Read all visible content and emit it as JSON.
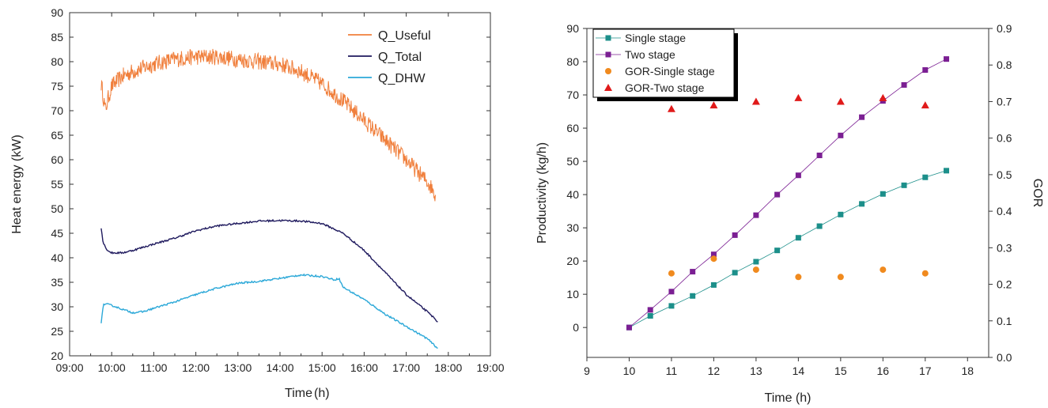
{
  "chart_data": [
    {
      "type": "line",
      "xlabel": "Time",
      "xlabel_unit": "(h)",
      "ylabel": "Heat energy (kW)",
      "x_ticks": [
        "09:00",
        "10:00",
        "11:00",
        "12:00",
        "13:00",
        "14:00",
        "15:00",
        "16:00",
        "17:00",
        "18:00",
        "19:00"
      ],
      "xlim": [
        9,
        19
      ],
      "ylim": [
        20,
        90
      ],
      "y_ticks": [
        20,
        25,
        30,
        35,
        40,
        45,
        50,
        55,
        60,
        65,
        70,
        75,
        80,
        85,
        90
      ],
      "grid": false,
      "legend_position": "top-right",
      "series": [
        {
          "name": "Q_Useful",
          "color": "#f07f3c",
          "noisy": true,
          "x": [
            9.75,
            9.8,
            9.85,
            9.9,
            10.0,
            10.25,
            10.5,
            11.0,
            11.5,
            12.0,
            12.5,
            13.0,
            13.5,
            14.0,
            14.5,
            15.0,
            15.5,
            16.0,
            16.5,
            17.0,
            17.5,
            17.7
          ],
          "values": [
            75.5,
            73.0,
            70.0,
            72.0,
            75.0,
            77.0,
            78.0,
            79.5,
            80.5,
            81.0,
            81.0,
            80.5,
            80.0,
            79.5,
            78.0,
            75.5,
            72.0,
            68.0,
            64.0,
            60.0,
            55.5,
            53.0
          ]
        },
        {
          "name": "Q_Total",
          "color": "#1f1a5e",
          "noisy": false,
          "x": [
            9.75,
            9.8,
            9.9,
            10.0,
            10.25,
            10.5,
            11.0,
            11.5,
            12.0,
            12.5,
            13.0,
            13.5,
            14.0,
            14.5,
            15.0,
            15.5,
            16.0,
            16.5,
            17.0,
            17.5,
            17.75
          ],
          "values": [
            46.0,
            43.0,
            41.5,
            41.0,
            41.0,
            41.5,
            42.8,
            44.0,
            45.5,
            46.5,
            47.0,
            47.5,
            47.6,
            47.5,
            47.0,
            45.0,
            41.5,
            37.0,
            32.5,
            29.0,
            27.0
          ]
        },
        {
          "name": "Q_DHW",
          "color": "#2ba8d8",
          "noisy": false,
          "x": [
            9.75,
            9.8,
            9.9,
            10.0,
            10.25,
            10.5,
            10.75,
            11.0,
            11.5,
            12.0,
            12.5,
            13.0,
            13.5,
            14.0,
            14.5,
            15.0,
            15.3,
            15.4,
            15.5,
            16.0,
            16.5,
            17.0,
            17.5,
            17.75
          ],
          "values": [
            26.5,
            30.5,
            30.5,
            30.3,
            29.5,
            28.8,
            29.0,
            29.7,
            31.0,
            32.5,
            33.8,
            34.8,
            35.2,
            35.8,
            36.5,
            36.2,
            35.5,
            35.8,
            34.0,
            31.5,
            28.5,
            26.0,
            23.5,
            21.5
          ]
        }
      ]
    },
    {
      "type": "scatter",
      "xlabel": "Time (h)",
      "ylabel": "Productivity (kg/h)",
      "y2label": "GOR",
      "xlim": [
        9,
        18.5
      ],
      "x_ticks": [
        9,
        10,
        11,
        12,
        13,
        14,
        15,
        16,
        17,
        18
      ],
      "ylim": [
        -9,
        90
      ],
      "y_ticks": [
        0,
        10,
        20,
        30,
        40,
        50,
        60,
        70,
        80,
        90
      ],
      "y2lim": [
        0,
        0.9
      ],
      "y2_ticks": [
        "0.0",
        "0.1",
        "0.2",
        "0.3",
        "0.4",
        "0.5",
        "0.6",
        "0.7",
        "0.8",
        "0.9"
      ],
      "grid": false,
      "legend_position": "top-left",
      "series": [
        {
          "name": "Single stage",
          "axis": "left",
          "marker": "square",
          "color": "#1c8f8a",
          "connected": true,
          "x": [
            10,
            10.5,
            11,
            11.5,
            12,
            12.5,
            13,
            13.5,
            14,
            14.5,
            15,
            15.5,
            16,
            16.5,
            17,
            17.5
          ],
          "values": [
            0,
            3.5,
            6.5,
            9.5,
            12.8,
            16.5,
            19.8,
            23.2,
            27.0,
            30.5,
            34.0,
            37.2,
            40.2,
            42.8,
            45.2,
            47.2
          ]
        },
        {
          "name": "Two stage",
          "axis": "left",
          "marker": "square",
          "color": "#7b1f93",
          "connected": true,
          "x": [
            10,
            10.5,
            11,
            11.5,
            12,
            12.5,
            13,
            13.5,
            14,
            14.5,
            15,
            15.5,
            16,
            16.5,
            17,
            17.5
          ],
          "values": [
            0,
            5.3,
            10.8,
            16.8,
            22.0,
            27.8,
            33.8,
            40.0,
            45.8,
            51.8,
            57.8,
            63.3,
            68.2,
            73.0,
            77.5,
            80.8
          ]
        },
        {
          "name": "GOR-Single stage",
          "axis": "right",
          "marker": "circle",
          "color": "#f08a1e",
          "connected": false,
          "x": [
            11,
            12,
            13,
            14,
            15,
            16,
            17
          ],
          "values": [
            0.23,
            0.27,
            0.24,
            0.22,
            0.22,
            0.24,
            0.23
          ]
        },
        {
          "name": "GOR-Two stage",
          "axis": "right",
          "marker": "triangle",
          "color": "#e01a1a",
          "connected": false,
          "x": [
            11,
            12,
            13,
            14,
            15,
            16,
            17
          ],
          "values": [
            0.68,
            0.69,
            0.7,
            0.71,
            0.7,
            0.71,
            0.69
          ]
        }
      ]
    }
  ]
}
